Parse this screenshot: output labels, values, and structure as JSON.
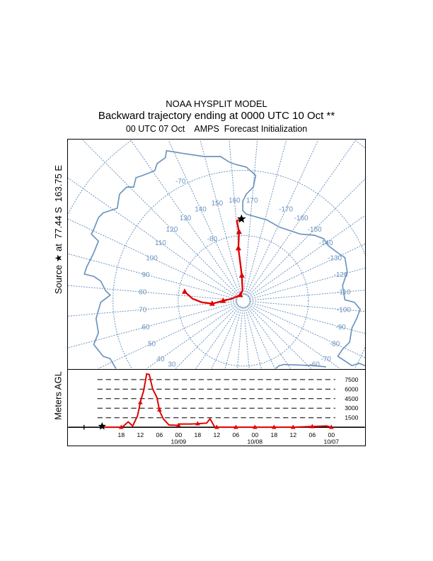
{
  "titles": {
    "model": "NOAA HYSPLIT MODEL",
    "main": "Backward trajectory ending at 0000 UTC 10 Oct **",
    "sub": "00 UTC 07 Oct    AMPS  Forecast Initialization"
  },
  "source_label": "Source ★ at  77.44 S  163.75 E",
  "height_axis_label": "Meters AGL",
  "colors": {
    "trajectory": "#e00000",
    "grid": "#6a93bf",
    "coast": "#6a93bf"
  },
  "chart_data": [
    {
      "type": "map-trajectory",
      "projection": "polar stereographic (south pole)",
      "source": {
        "lat": -77.44,
        "lon": 163.75
      },
      "parallels": [
        -89,
        -80,
        -70,
        -60
      ],
      "parallel_labels": [
        {
          "lat": -70,
          "text": "-70"
        },
        {
          "lat": -80,
          "text": "-80"
        }
      ],
      "meridian_labels": [
        "30",
        "40",
        "50",
        "60",
        "70",
        "80",
        "90",
        "100",
        "110",
        "120",
        "130",
        "140",
        "150",
        "160",
        "170",
        "-170",
        "-160",
        "-150",
        "-140",
        "-130",
        "-120",
        "-110",
        "-100",
        "-90",
        "-80",
        "-70",
        "-60"
      ],
      "trajectory": [
        {
          "lat": -77.44,
          "lon": 163.75
        },
        {
          "lat": -77.7,
          "lon": 160.4
        },
        {
          "lat": -79.4,
          "lon": 161.5
        },
        {
          "lat": -81.9,
          "lon": 159.7
        },
        {
          "lat": -86.1,
          "lon": 161.8
        },
        {
          "lat": -88.4,
          "lon": 161
        },
        {
          "lat": -89.0,
          "lon": 138
        },
        {
          "lat": -88.2,
          "lon": 85.6
        },
        {
          "lat": -86.9,
          "lon": 75
        },
        {
          "lat": -85.2,
          "lon": 69.8
        },
        {
          "lat": -83.6,
          "lon": 73
        },
        {
          "lat": -82.2,
          "lon": 77.4
        },
        {
          "lat": -80.9,
          "lon": 83.9
        }
      ],
      "marker_indices": [
        2,
        3,
        4,
        6,
        8,
        9,
        12
      ]
    },
    {
      "type": "line",
      "title": "",
      "xlabel": "",
      "ylabel": "Meters AGL",
      "ylim": [
        0,
        8500
      ],
      "yticks": [
        1500,
        3000,
        4500,
        6000,
        7500
      ],
      "ytick_labels": [
        "1500",
        "3000",
        "4500",
        "6000",
        "7500"
      ],
      "xlim_hours_back": [
        -6,
        72
      ],
      "xticks": [
        {
          "h": 6,
          "label": "18"
        },
        {
          "h": 12,
          "label": "12"
        },
        {
          "h": 18,
          "label": "06"
        },
        {
          "h": 24,
          "label": "00",
          "date": "10/09"
        },
        {
          "h": 30,
          "label": "18"
        },
        {
          "h": 36,
          "label": "12"
        },
        {
          "h": 42,
          "label": "06"
        },
        {
          "h": 48,
          "label": "00",
          "date": "10/08"
        },
        {
          "h": 54,
          "label": "18"
        },
        {
          "h": 60,
          "label": "12"
        },
        {
          "h": 66,
          "label": "06"
        },
        {
          "h": 72,
          "label": "00",
          "date": "10/07"
        }
      ],
      "series": [
        {
          "name": "trajectory height",
          "x": [
            0,
            6.3,
            8.2,
            9.6,
            11.1,
            12.2,
            13,
            14,
            14.8,
            15.9,
            17.2,
            18.1,
            19.2,
            21,
            24,
            24.3,
            27.7,
            29.9,
            32.8,
            33.9,
            35.4,
            48,
            60,
            70.5,
            72
          ],
          "y": [
            0,
            0,
            850,
            200,
            1770,
            4350,
            5650,
            8400,
            8300,
            6000,
            4700,
            2500,
            1330,
            350,
            300,
            500,
            500,
            550,
            650,
            1330,
            0,
            0,
            0,
            200,
            0
          ]
        }
      ],
      "marker_hours": [
        6,
        12,
        18,
        24,
        30,
        36,
        42,
        48,
        54,
        60,
        66,
        72
      ]
    }
  ]
}
